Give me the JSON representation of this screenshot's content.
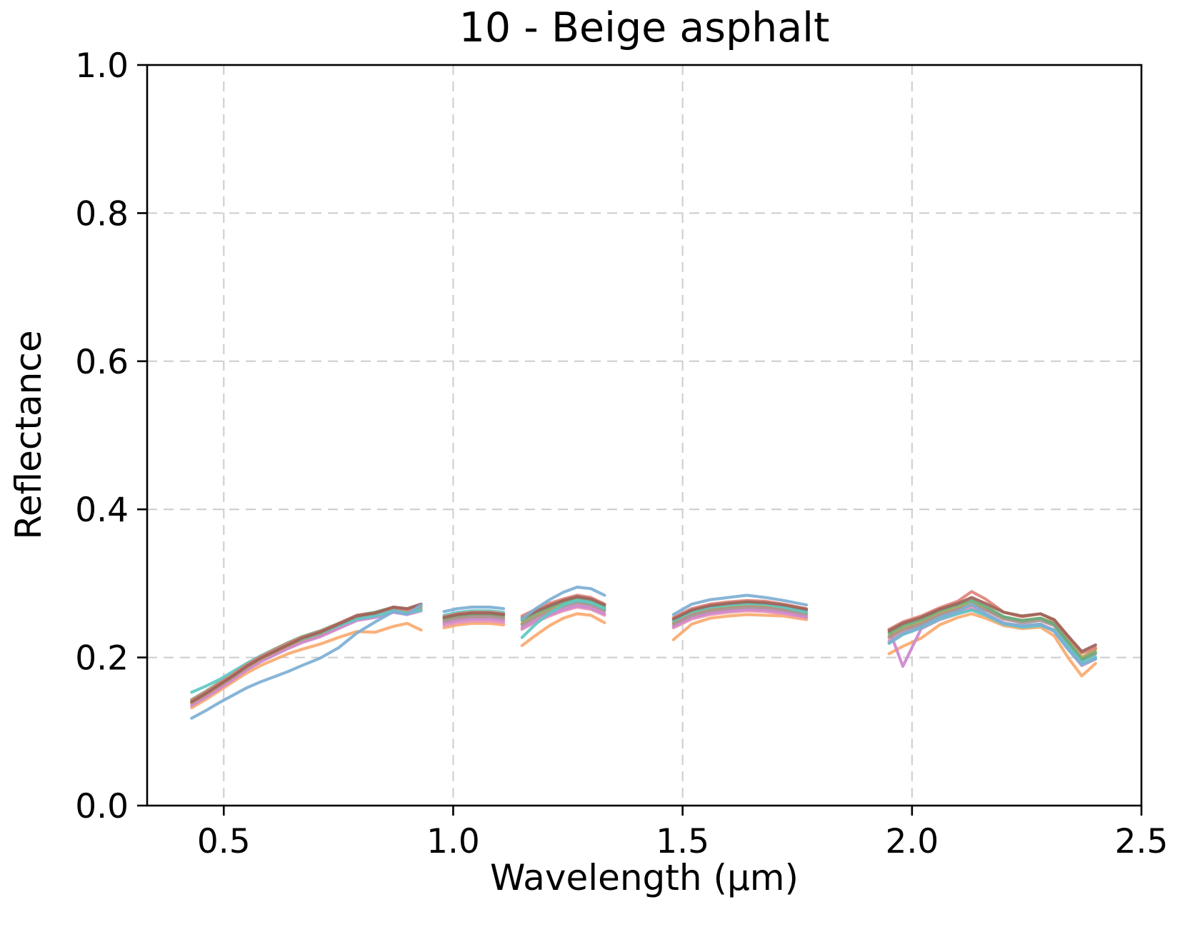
{
  "figure": {
    "background": "#ffffff",
    "text_color": "#000000",
    "grid_color": "#cccccc",
    "spine_color": "#000000"
  },
  "chart_data": {
    "type": "line",
    "title": "10 - Beige asphalt",
    "xlabel": "Wavelength (µm)",
    "ylabel": "Reflectance",
    "xlim": [
      0.333,
      2.5
    ],
    "ylim": [
      0.0,
      1.0
    ],
    "xticks": [
      0.5,
      1.0,
      1.5,
      2.0,
      2.5
    ],
    "xtick_labels": [
      "0.5",
      "1.0",
      "1.5",
      "2.0",
      "2.5"
    ],
    "yticks": [
      0.0,
      0.2,
      0.4,
      0.6,
      0.8,
      1.0
    ],
    "ytick_labels": [
      "0.0",
      "0.2",
      "0.4",
      "0.6",
      "0.8",
      "1.0"
    ],
    "grid": true,
    "grid_style": "dashed",
    "legend": "none",
    "gaps_um": [
      [
        0.93,
        0.98
      ],
      [
        1.11,
        1.15
      ],
      [
        1.33,
        1.48
      ],
      [
        1.77,
        1.95
      ]
    ],
    "segments_x": [
      [
        0.43,
        0.46,
        0.49,
        0.52,
        0.55,
        0.58,
        0.61,
        0.64,
        0.67,
        0.71,
        0.75,
        0.79,
        0.83,
        0.87,
        0.9,
        0.93
      ],
      [
        0.98,
        1.01,
        1.04,
        1.08,
        1.11
      ],
      [
        1.15,
        1.18,
        1.21,
        1.24,
        1.27,
        1.3,
        1.33
      ],
      [
        1.48,
        1.52,
        1.56,
        1.6,
        1.64,
        1.68,
        1.72,
        1.77
      ],
      [
        1.95,
        1.98,
        2.02,
        2.06,
        2.1,
        2.13,
        2.16,
        2.2,
        2.24,
        2.28,
        2.31,
        2.34,
        2.37,
        2.4
      ]
    ],
    "series": [
      {
        "name": "spectrum-orange",
        "color": "#f9aa6f",
        "segments_y": [
          [
            0.132,
            0.143,
            0.155,
            0.167,
            0.179,
            0.189,
            0.197,
            0.205,
            0.211,
            0.218,
            0.227,
            0.235,
            0.234,
            0.242,
            0.246,
            0.237
          ],
          [
            0.24,
            0.244,
            0.246,
            0.246,
            0.244
          ],
          [
            0.216,
            0.23,
            0.243,
            0.253,
            0.259,
            0.257,
            0.247
          ],
          [
            0.224,
            0.245,
            0.253,
            0.256,
            0.258,
            0.257,
            0.256,
            0.251
          ],
          [
            0.205,
            0.215,
            0.226,
            0.244,
            0.254,
            0.259,
            0.253,
            0.243,
            0.239,
            0.241,
            0.229,
            0.2,
            0.175,
            0.192
          ]
        ]
      },
      {
        "name": "spectrum-pink",
        "color": "#e795b6",
        "segments_y": [
          [
            0.137,
            0.148,
            0.16,
            0.172,
            0.185,
            0.196,
            0.205,
            0.214,
            0.222,
            0.23,
            0.241,
            0.252,
            0.256,
            0.263,
            0.26,
            0.264
          ],
          [
            0.243,
            0.247,
            0.249,
            0.249,
            0.247
          ],
          [
            0.238,
            0.248,
            0.256,
            0.263,
            0.268,
            0.265,
            0.257
          ],
          [
            0.24,
            0.252,
            0.258,
            0.261,
            0.263,
            0.262,
            0.259,
            0.253
          ],
          [
            0.223,
            0.233,
            0.242,
            0.254,
            0.262,
            0.267,
            0.259,
            0.247,
            0.242,
            0.245,
            0.237,
            0.212,
            0.189,
            0.198
          ]
        ]
      },
      {
        "name": "spectrum-orchid",
        "color": "#cd88cd",
        "segments_y": [
          [
            0.135,
            0.146,
            0.158,
            0.17,
            0.183,
            0.194,
            0.203,
            0.212,
            0.22,
            0.228,
            0.239,
            0.25,
            0.254,
            0.261,
            0.258,
            0.263
          ],
          [
            0.246,
            0.25,
            0.252,
            0.252,
            0.25
          ],
          [
            0.24,
            0.25,
            0.258,
            0.265,
            0.27,
            0.267,
            0.259
          ],
          [
            0.242,
            0.254,
            0.26,
            0.263,
            0.265,
            0.264,
            0.261,
            0.255
          ],
          [
            0.238,
            0.188,
            0.239,
            0.251,
            0.259,
            0.265,
            0.258,
            0.246,
            0.241,
            0.244,
            0.236,
            0.213,
            0.191,
            0.199
          ]
        ]
      },
      {
        "name": "spectrum-khaki",
        "color": "#b2a351",
        "segments_y": [
          [
            0.139,
            0.15,
            0.162,
            0.174,
            0.187,
            0.198,
            0.207,
            0.216,
            0.224,
            0.232,
            0.243,
            0.254,
            0.258,
            0.265,
            0.262,
            0.266
          ],
          [
            0.251,
            0.255,
            0.257,
            0.257,
            0.255
          ],
          [
            0.246,
            0.256,
            0.265,
            0.271,
            0.276,
            0.273,
            0.265
          ],
          [
            0.247,
            0.259,
            0.265,
            0.268,
            0.27,
            0.269,
            0.266,
            0.26
          ],
          [
            0.229,
            0.239,
            0.247,
            0.259,
            0.267,
            0.273,
            0.266,
            0.254,
            0.25,
            0.253,
            0.246,
            0.223,
            0.2,
            0.211
          ]
        ]
      },
      {
        "name": "spectrum-rosybrown",
        "color": "#ab9191",
        "segments_y": [
          [
            0.141,
            0.152,
            0.164,
            0.176,
            0.189,
            0.2,
            0.209,
            0.218,
            0.226,
            0.234,
            0.244,
            0.255,
            0.259,
            0.267,
            0.264,
            0.272
          ],
          [
            0.249,
            0.253,
            0.255,
            0.255,
            0.253
          ],
          [
            0.244,
            0.254,
            0.262,
            0.269,
            0.274,
            0.271,
            0.263
          ],
          [
            0.245,
            0.257,
            0.263,
            0.266,
            0.268,
            0.267,
            0.264,
            0.258
          ],
          [
            0.227,
            0.237,
            0.245,
            0.257,
            0.265,
            0.271,
            0.264,
            0.252,
            0.247,
            0.25,
            0.243,
            0.219,
            0.196,
            0.205
          ]
        ]
      },
      {
        "name": "spectrum-seagreen",
        "color": "#68ab7d",
        "segments_y": [
          [
            0.143,
            0.154,
            0.166,
            0.178,
            0.191,
            0.202,
            0.211,
            0.22,
            0.228,
            0.236,
            0.246,
            0.257,
            0.261,
            0.268,
            0.265,
            0.269
          ],
          [
            0.253,
            0.257,
            0.259,
            0.259,
            0.257
          ],
          [
            0.25,
            0.26,
            0.268,
            0.275,
            0.28,
            0.277,
            0.268
          ],
          [
            0.25,
            0.262,
            0.268,
            0.271,
            0.273,
            0.272,
            0.269,
            0.263
          ],
          [
            0.233,
            0.243,
            0.251,
            0.263,
            0.271,
            0.277,
            0.269,
            0.255,
            0.25,
            0.253,
            0.245,
            0.221,
            0.197,
            0.207
          ]
        ]
      },
      {
        "name": "spectrum-turquoise",
        "color": "#5fc8c3",
        "segments_y": [
          [
            0.153,
            0.161,
            0.17,
            0.181,
            0.192,
            0.202,
            0.21,
            0.218,
            0.225,
            0.233,
            0.243,
            0.252,
            0.256,
            0.263,
            0.26,
            0.264
          ],
          [
            0.257,
            0.261,
            0.263,
            0.263,
            0.261
          ],
          [
            0.227,
            0.245,
            0.26,
            0.271,
            0.277,
            0.274,
            0.266
          ],
          [
            0.25,
            0.262,
            0.268,
            0.271,
            0.273,
            0.272,
            0.268,
            0.261
          ],
          [
            0.219,
            0.231,
            0.24,
            0.252,
            0.259,
            0.264,
            0.257,
            0.245,
            0.241,
            0.243,
            0.237,
            0.215,
            0.193,
            0.201
          ]
        ]
      },
      {
        "name": "spectrum-salmon",
        "color": "#de837a",
        "segments_y": [
          [
            0.142,
            0.153,
            0.165,
            0.177,
            0.19,
            0.201,
            0.21,
            0.219,
            0.227,
            0.235,
            0.246,
            0.257,
            0.26,
            0.268,
            0.264,
            0.27
          ],
          [
            0.255,
            0.259,
            0.261,
            0.261,
            0.259
          ],
          [
            0.256,
            0.265,
            0.273,
            0.279,
            0.284,
            0.281,
            0.272
          ],
          [
            0.254,
            0.266,
            0.272,
            0.275,
            0.277,
            0.276,
            0.272,
            0.266
          ],
          [
            0.238,
            0.248,
            0.256,
            0.267,
            0.276,
            0.289,
            0.279,
            0.261,
            0.255,
            0.259,
            0.25,
            0.228,
            0.206,
            0.213
          ]
        ]
      },
      {
        "name": "spectrum-sienna",
        "color": "#9d6459",
        "segments_y": [
          [
            0.14,
            0.151,
            0.163,
            0.175,
            0.188,
            0.199,
            0.208,
            0.217,
            0.226,
            0.234,
            0.245,
            0.256,
            0.26,
            0.268,
            0.266,
            0.272
          ],
          [
            0.254,
            0.258,
            0.26,
            0.26,
            0.258
          ],
          [
            0.253,
            0.262,
            0.27,
            0.277,
            0.282,
            0.279,
            0.271
          ],
          [
            0.252,
            0.264,
            0.27,
            0.273,
            0.275,
            0.274,
            0.271,
            0.265
          ],
          [
            0.236,
            0.246,
            0.254,
            0.265,
            0.273,
            0.281,
            0.273,
            0.261,
            0.256,
            0.259,
            0.251,
            0.229,
            0.208,
            0.217
          ]
        ]
      },
      {
        "name": "spectrum-steelblue",
        "color": "#7eafd4",
        "segments_y": [
          [
            0.118,
            0.128,
            0.139,
            0.149,
            0.159,
            0.167,
            0.174,
            0.181,
            0.189,
            0.199,
            0.213,
            0.233,
            0.248,
            0.262,
            0.258,
            0.271
          ],
          [
            0.262,
            0.266,
            0.268,
            0.268,
            0.266
          ],
          [
            0.252,
            0.266,
            0.278,
            0.288,
            0.295,
            0.293,
            0.284
          ],
          [
            0.258,
            0.272,
            0.278,
            0.281,
            0.284,
            0.281,
            0.277,
            0.271
          ],
          [
            0.22,
            0.232,
            0.241,
            0.254,
            0.262,
            0.272,
            0.259,
            0.246,
            0.243,
            0.245,
            0.235,
            0.211,
            0.19,
            0.198
          ]
        ]
      }
    ]
  }
}
